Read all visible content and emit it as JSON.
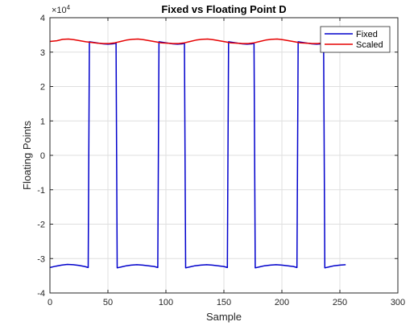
{
  "chart_data": {
    "type": "line",
    "title": "Fixed vs Floating Point D",
    "xlabel": "Sample",
    "ylabel": "Floating Points",
    "xlim": [
      0,
      300
    ],
    "ylim": [
      -4,
      4
    ],
    "x_ticks": [
      "0",
      "50",
      "100",
      "150",
      "200",
      "250",
      "300"
    ],
    "y_ticks": [
      "-4",
      "-3",
      "-2",
      "-1",
      "0",
      "1",
      "2",
      "3",
      "4"
    ],
    "y_exponent_base": "×10",
    "y_exponent_power": "4",
    "grid": true,
    "legend_position": "top-right",
    "series": [
      {
        "name": "Fixed",
        "color": "#0000cc",
        "points": [
          [
            0,
            -3.26
          ],
          [
            5,
            -3.22
          ],
          [
            10,
            -3.19
          ],
          [
            15,
            -3.17
          ],
          [
            20,
            -3.18
          ],
          [
            25,
            -3.2
          ],
          [
            30,
            -3.23
          ],
          [
            33,
            -3.26
          ],
          [
            34,
            3.3
          ],
          [
            38,
            3.28
          ],
          [
            42,
            3.26
          ],
          [
            46,
            3.24
          ],
          [
            50,
            3.23
          ],
          [
            54,
            3.24
          ],
          [
            57,
            3.26
          ],
          [
            58,
            -3.27
          ],
          [
            62,
            -3.24
          ],
          [
            66,
            -3.21
          ],
          [
            70,
            -3.19
          ],
          [
            75,
            -3.18
          ],
          [
            80,
            -3.19
          ],
          [
            85,
            -3.21
          ],
          [
            90,
            -3.23
          ],
          [
            93,
            -3.26
          ],
          [
            94,
            3.3
          ],
          [
            98,
            3.28
          ],
          [
            102,
            3.26
          ],
          [
            106,
            3.24
          ],
          [
            110,
            3.23
          ],
          [
            114,
            3.24
          ],
          [
            116,
            3.26
          ],
          [
            117,
            -3.27
          ],
          [
            121,
            -3.24
          ],
          [
            125,
            -3.21
          ],
          [
            130,
            -3.19
          ],
          [
            135,
            -3.18
          ],
          [
            140,
            -3.19
          ],
          [
            145,
            -3.21
          ],
          [
            150,
            -3.23
          ],
          [
            153,
            -3.26
          ],
          [
            154,
            3.3
          ],
          [
            158,
            3.28
          ],
          [
            162,
            3.26
          ],
          [
            166,
            3.24
          ],
          [
            170,
            3.23
          ],
          [
            174,
            3.24
          ],
          [
            176,
            3.26
          ],
          [
            177,
            -3.27
          ],
          [
            181,
            -3.24
          ],
          [
            185,
            -3.21
          ],
          [
            190,
            -3.19
          ],
          [
            195,
            -3.18
          ],
          [
            200,
            -3.19
          ],
          [
            205,
            -3.21
          ],
          [
            210,
            -3.23
          ],
          [
            213,
            -3.26
          ],
          [
            214,
            3.3
          ],
          [
            218,
            3.28
          ],
          [
            222,
            3.26
          ],
          [
            226,
            3.24
          ],
          [
            230,
            3.23
          ],
          [
            234,
            3.24
          ],
          [
            236,
            3.26
          ],
          [
            237,
            -3.27
          ],
          [
            241,
            -3.24
          ],
          [
            245,
            -3.21
          ],
          [
            250,
            -3.19
          ],
          [
            255,
            -3.18
          ]
        ]
      },
      {
        "name": "Scaled",
        "color": "#e60000",
        "points": [
          [
            0,
            3.31
          ],
          [
            6,
            3.33
          ],
          [
            11,
            3.37
          ],
          [
            16,
            3.38
          ],
          [
            21,
            3.36
          ],
          [
            26,
            3.33
          ],
          [
            31,
            3.3
          ],
          [
            36,
            3.28
          ],
          [
            41,
            3.26
          ],
          [
            46,
            3.25
          ],
          [
            51,
            3.25
          ],
          [
            56,
            3.27
          ],
          [
            61,
            3.31
          ],
          [
            66,
            3.35
          ],
          [
            71,
            3.37
          ],
          [
            76,
            3.38
          ],
          [
            81,
            3.36
          ],
          [
            86,
            3.33
          ],
          [
            91,
            3.3
          ],
          [
            96,
            3.27
          ],
          [
            101,
            3.26
          ],
          [
            106,
            3.25
          ],
          [
            111,
            3.25
          ],
          [
            116,
            3.27
          ],
          [
            121,
            3.31
          ],
          [
            126,
            3.35
          ],
          [
            131,
            3.37
          ],
          [
            136,
            3.38
          ],
          [
            141,
            3.36
          ],
          [
            146,
            3.33
          ],
          [
            151,
            3.3
          ],
          [
            156,
            3.27
          ],
          [
            161,
            3.26
          ],
          [
            166,
            3.25
          ],
          [
            171,
            3.25
          ],
          [
            176,
            3.27
          ],
          [
            181,
            3.31
          ],
          [
            186,
            3.35
          ],
          [
            191,
            3.37
          ],
          [
            196,
            3.38
          ],
          [
            201,
            3.36
          ],
          [
            206,
            3.33
          ],
          [
            211,
            3.3
          ],
          [
            216,
            3.27
          ],
          [
            221,
            3.26
          ],
          [
            226,
            3.25
          ],
          [
            231,
            3.25
          ],
          [
            236,
            3.27
          ],
          [
            241,
            3.31
          ],
          [
            246,
            3.35
          ],
          [
            251,
            3.37
          ],
          [
            255,
            3.37
          ]
        ]
      }
    ]
  }
}
